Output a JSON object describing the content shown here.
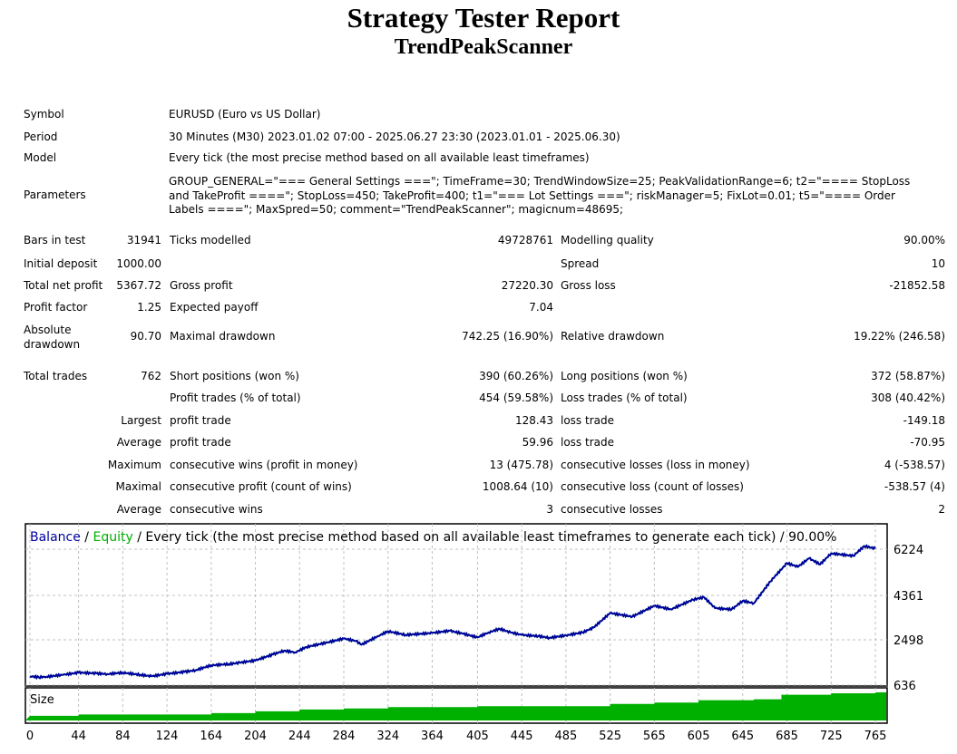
{
  "title": "Strategy Tester Report",
  "subtitle": "TrendPeakScanner",
  "info": [
    {
      "label": "Symbol",
      "value": "EURUSD (Euro vs US Dollar)"
    },
    {
      "label": "Period",
      "value": "30 Minutes (M30) 2023.01.02 07:00 - 2025.06.27 23:30 (2023.01.01 - 2025.06.30)"
    },
    {
      "label": "Model",
      "value": "Every tick (the most precise method based on all available least timeframes)"
    },
    {
      "label": "Parameters",
      "value": "GROUP_GENERAL=\"=== General Settings ===\"; TimeFrame=30; TrendWindowSize=25; PeakValidationRange=6; t2=\"==== StopLoss and TakeProfit ====\"; StopLoss=450; TakeProfit=400; t1=\"=== Lot Settings ===\"; riskManager=5; FixLot=0.01; t5=\"==== Order Labels ====\"; MaxSpred=50; comment=\"TrendPeakScanner\"; magicnum=48695;"
    }
  ],
  "stats": [
    [
      "Bars in test",
      "31941",
      "Ticks modelled",
      "49728761",
      "Modelling quality",
      "90.00%"
    ],
    [
      "Initial deposit",
      "1000.00",
      "",
      "",
      "Spread",
      "10"
    ],
    [
      "Total net profit",
      "5367.72",
      "Gross profit",
      "27220.30",
      "Gross loss",
      "-21852.58"
    ],
    [
      "Profit factor",
      "1.25",
      "Expected payoff",
      "7.04",
      "",
      ""
    ],
    [
      "Absolute drawdown",
      "90.70",
      "Maximal drawdown",
      "742.25 (16.90%)",
      "Relative drawdown",
      "19.22% (246.58)"
    ],
    [
      "Total trades",
      "762",
      "Short positions (won %)",
      "390 (60.26%)",
      "Long positions (won %)",
      "372 (58.87%)"
    ],
    [
      "",
      "",
      "Profit trades (% of total)",
      "454 (59.58%)",
      "Loss trades (% of total)",
      "308 (40.42%)"
    ],
    [
      "Largest",
      "",
      "profit trade",
      "128.43",
      "loss trade",
      "-149.18"
    ],
    [
      "Average",
      "",
      "profit trade",
      "59.96",
      "loss trade",
      "-70.95"
    ],
    [
      "Maximum",
      "",
      "consecutive wins (profit in money)",
      "13 (475.78)",
      "consecutive losses (loss in money)",
      "4 (-538.57)"
    ],
    [
      "Maximal",
      "",
      "consecutive profit (count of wins)",
      "1008.64 (10)",
      "consecutive loss (count of losses)",
      "-538.57 (4)"
    ],
    [
      "Average",
      "",
      "consecutive wins",
      "3",
      "consecutive losses",
      "2"
    ]
  ],
  "chart_data": {
    "type": "line",
    "legend": {
      "balance": "Balance",
      "sep1": " / ",
      "equity": "Equity",
      "rest": " / Every tick (the most precise method based on all available least timeframes to generate each tick) / 90.00%"
    },
    "colors": {
      "balance": "#0000a0",
      "equity": "#00b000",
      "size": "#00b000",
      "grid": "#c0c0c0"
    },
    "xlabel": "",
    "ylabel": "",
    "xlim": [
      0,
      765
    ],
    "ylim": [
      636,
      6224
    ],
    "y_ticks": [
      "6224",
      "4361",
      "2498",
      "636"
    ],
    "x_ticks": [
      "0",
      "44",
      "84",
      "124",
      "164",
      "204",
      "244",
      "284",
      "324",
      "364",
      "405",
      "445",
      "485",
      "525",
      "565",
      "605",
      "645",
      "685",
      "725",
      "765"
    ],
    "balance": [
      [
        0,
        1000
      ],
      [
        8,
        960
      ],
      [
        15,
        980
      ],
      [
        30,
        1060
      ],
      [
        44,
        1150
      ],
      [
        60,
        1120
      ],
      [
        70,
        1090
      ],
      [
        84,
        1150
      ],
      [
        100,
        1060
      ],
      [
        110,
        1000
      ],
      [
        124,
        1100
      ],
      [
        140,
        1180
      ],
      [
        150,
        1250
      ],
      [
        164,
        1450
      ],
      [
        180,
        1500
      ],
      [
        190,
        1560
      ],
      [
        204,
        1650
      ],
      [
        220,
        1900
      ],
      [
        230,
        2050
      ],
      [
        240,
        1980
      ],
      [
        250,
        2200
      ],
      [
        270,
        2400
      ],
      [
        284,
        2550
      ],
      [
        295,
        2450
      ],
      [
        300,
        2300
      ],
      [
        315,
        2650
      ],
      [
        324,
        2850
      ],
      [
        340,
        2700
      ],
      [
        364,
        2780
      ],
      [
        380,
        2870
      ],
      [
        392,
        2750
      ],
      [
        405,
        2600
      ],
      [
        415,
        2800
      ],
      [
        425,
        2950
      ],
      [
        435,
        2800
      ],
      [
        445,
        2700
      ],
      [
        460,
        2650
      ],
      [
        470,
        2580
      ],
      [
        485,
        2680
      ],
      [
        500,
        2800
      ],
      [
        510,
        3000
      ],
      [
        525,
        3600
      ],
      [
        545,
        3450
      ],
      [
        565,
        3900
      ],
      [
        580,
        3750
      ],
      [
        600,
        4150
      ],
      [
        610,
        4250
      ],
      [
        620,
        3800
      ],
      [
        635,
        3750
      ],
      [
        645,
        4100
      ],
      [
        655,
        4000
      ],
      [
        670,
        4900
      ],
      [
        685,
        5650
      ],
      [
        695,
        5500
      ],
      [
        705,
        5850
      ],
      [
        715,
        5600
      ],
      [
        725,
        6050
      ],
      [
        745,
        5950
      ],
      [
        755,
        6350
      ],
      [
        765,
        6250
      ]
    ],
    "size_label": "Size",
    "size": [
      [
        0,
        1
      ],
      [
        44,
        1.3
      ],
      [
        164,
        1.6
      ],
      [
        204,
        2
      ],
      [
        244,
        2.4
      ],
      [
        284,
        2.6
      ],
      [
        324,
        2.9
      ],
      [
        405,
        3.1
      ],
      [
        525,
        3.6
      ],
      [
        565,
        3.9
      ],
      [
        605,
        4.4
      ],
      [
        655,
        4.6
      ],
      [
        680,
        5.6
      ],
      [
        725,
        5.9
      ],
      [
        765,
        6.1
      ]
    ],
    "size_max": 6.5
  }
}
